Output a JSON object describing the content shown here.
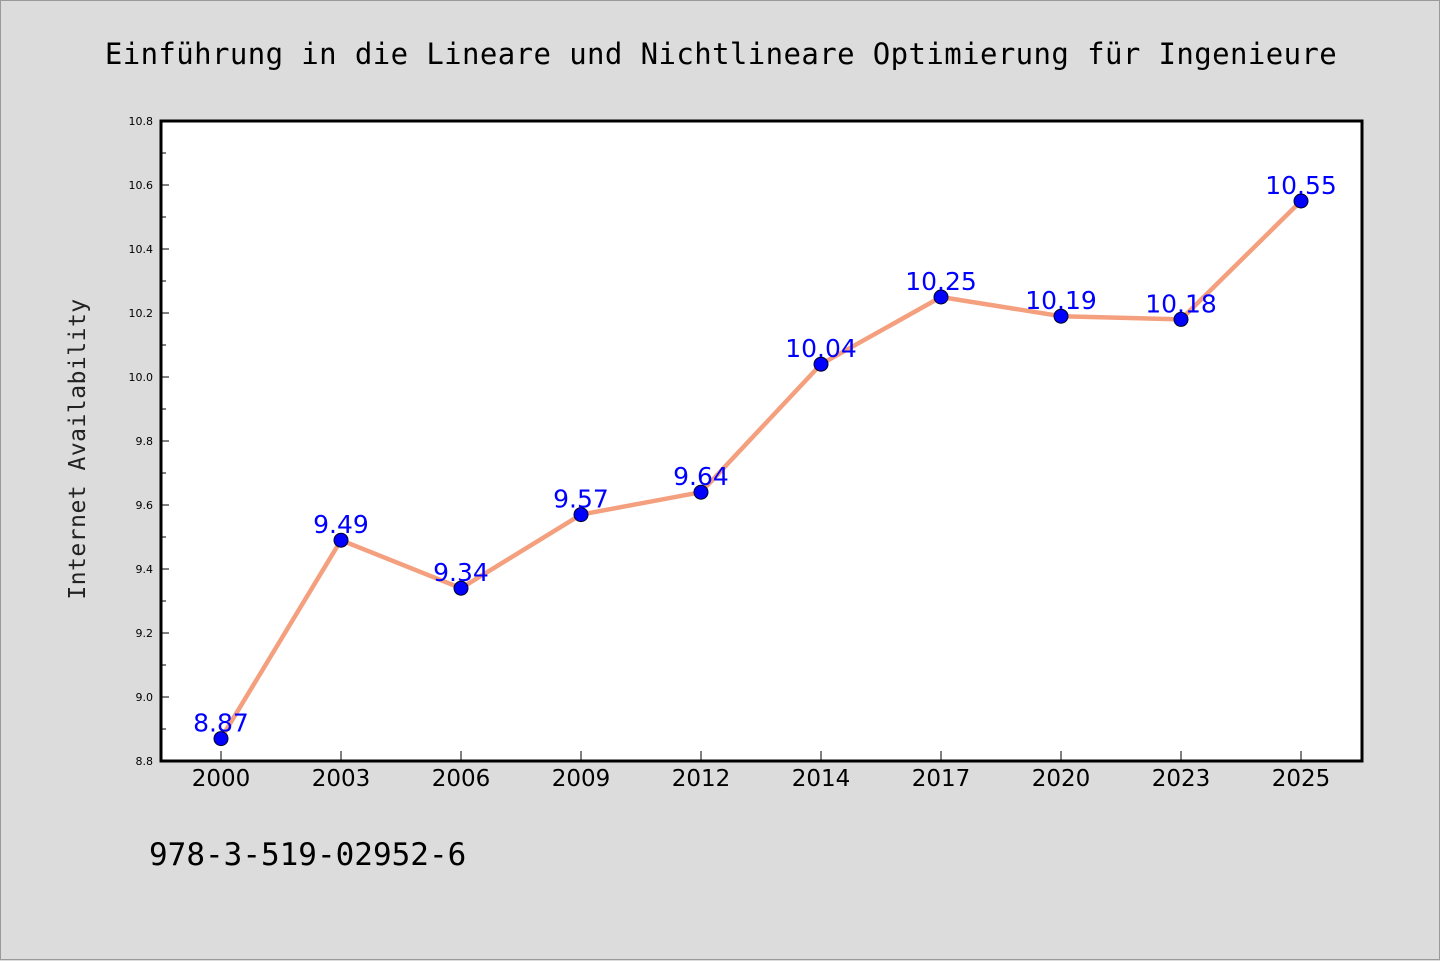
{
  "figure": {
    "title": "Einführung in die Lineare und Nichtlineare Optimierung für Ingenieure",
    "footer_text": "978-3-519-02952-6"
  },
  "chart_data": {
    "type": "line",
    "title": "Einführung in die Lineare und Nichtlineare Optimierung für Ingenieure",
    "xlabel": "",
    "ylabel": "Internet Availability",
    "categories": [
      "2000",
      "2003",
      "2006",
      "2009",
      "2012",
      "2014",
      "2017",
      "2020",
      "2023",
      "2025"
    ],
    "series": [
      {
        "values": [
          8.87,
          9.49,
          9.34,
          9.57,
          9.64,
          10.04,
          10.25,
          10.19,
          10.18,
          10.55
        ],
        "data_labels": [
          "8.87",
          "9.49",
          "9.34",
          "9.57",
          "9.64",
          "10.04",
          "10.25",
          "10.19",
          "10.18",
          "10.55"
        ]
      }
    ],
    "ylim": [
      8.8,
      10.8
    ],
    "y_ticks": [
      "8.8",
      "9.0",
      "9.2",
      "9.4",
      "9.6",
      "9.8",
      "10.0",
      "10.2",
      "10.4",
      "10.6",
      "10.8"
    ],
    "grid": false,
    "legend": "none",
    "colors": {
      "line": "#f4a07e",
      "marker": "#0000ff",
      "data_label": "#0000ff",
      "background": "#dcdcdc",
      "plot_background": "#ffffff"
    }
  }
}
